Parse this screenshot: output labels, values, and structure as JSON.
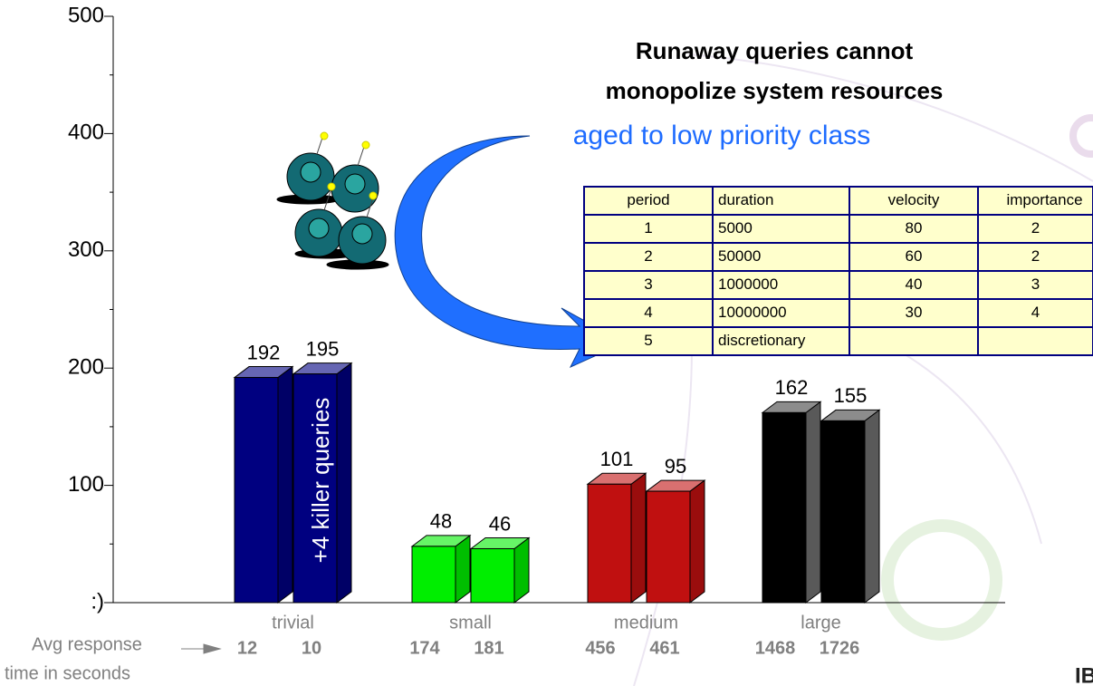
{
  "chart_data": {
    "type": "bar3d",
    "title_lines": [
      "Runaway queries cannot",
      "monopolize system resources"
    ],
    "subtitle": "aged to low priority class",
    "annotation": "+4 killer queries",
    "categories": [
      "trivial",
      "small",
      "medium",
      "large"
    ],
    "colors": [
      "#000080",
      "#00ee00",
      "#c01010",
      "#000000"
    ],
    "series": [
      {
        "values": [
          192,
          48,
          101,
          162
        ],
        "response_times": [
          12,
          174,
          456,
          1468
        ]
      },
      {
        "values": [
          195,
          46,
          95,
          155
        ],
        "response_times": [
          10,
          181,
          461,
          1726
        ]
      }
    ],
    "response_label_lines": [
      "Avg response",
      "time in seconds"
    ],
    "ylim": [
      0,
      500
    ],
    "yticks": [
      {
        "value": 0,
        "label": ":)"
      },
      100,
      200,
      300,
      400,
      500
    ],
    "yminorticks": [
      50,
      150,
      250,
      350,
      450
    ],
    "logo": "IB",
    "table": {
      "columns": [
        "period",
        "duration",
        "velocity",
        "importance"
      ],
      "rows": [
        [
          1,
          5000,
          80,
          2
        ],
        [
          2,
          50000,
          60,
          2
        ],
        [
          3,
          1000000,
          40,
          3
        ],
        [
          4,
          10000000,
          30,
          4
        ],
        [
          5,
          "discretionary"
        ]
      ]
    }
  }
}
